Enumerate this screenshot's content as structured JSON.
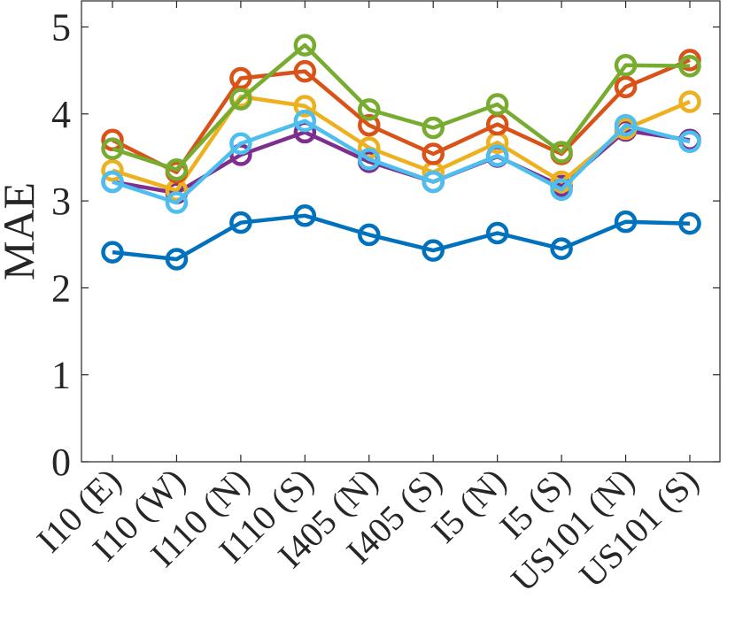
{
  "chart_data": {
    "type": "line",
    "title": "",
    "xlabel": "",
    "ylabel": "MAE",
    "ylim": [
      0,
      5.3
    ],
    "yticks": [
      0,
      1,
      2,
      3,
      4,
      5
    ],
    "categories": [
      "I10 (E)",
      "I10 (W)",
      "I110 (N)",
      "I110 (S)",
      "I405 (N)",
      "I405 (S)",
      "I5 (N)",
      "I5 (S)",
      "US101 (N)",
      "US101 (S)"
    ],
    "grid": false,
    "marker": "circle",
    "series": [
      {
        "color": "#7E2F8E",
        "values": [
          3.22,
          3.09,
          3.53,
          3.79,
          3.45,
          3.22,
          3.51,
          3.17,
          3.81,
          3.7
        ]
      },
      {
        "color": "#EDB120",
        "values": [
          3.35,
          3.12,
          4.2,
          4.09,
          3.61,
          3.33,
          3.67,
          3.22,
          3.83,
          4.14
        ]
      },
      {
        "color": "#D95319",
        "values": [
          3.7,
          3.33,
          4.41,
          4.49,
          3.87,
          3.54,
          3.88,
          3.54,
          4.31,
          4.62
        ]
      },
      {
        "color": "#77AC30",
        "values": [
          3.6,
          3.36,
          4.17,
          4.79,
          4.05,
          3.84,
          4.11,
          3.56,
          4.56,
          4.55
        ]
      },
      {
        "color": "#4DBEEE",
        "values": [
          3.22,
          2.98,
          3.66,
          3.92,
          3.48,
          3.22,
          3.52,
          3.13,
          3.87,
          3.68
        ]
      },
      {
        "color": "#0072BD",
        "values": [
          2.41,
          2.33,
          2.75,
          2.83,
          2.61,
          2.43,
          2.63,
          2.45,
          2.76,
          2.74
        ]
      }
    ]
  }
}
